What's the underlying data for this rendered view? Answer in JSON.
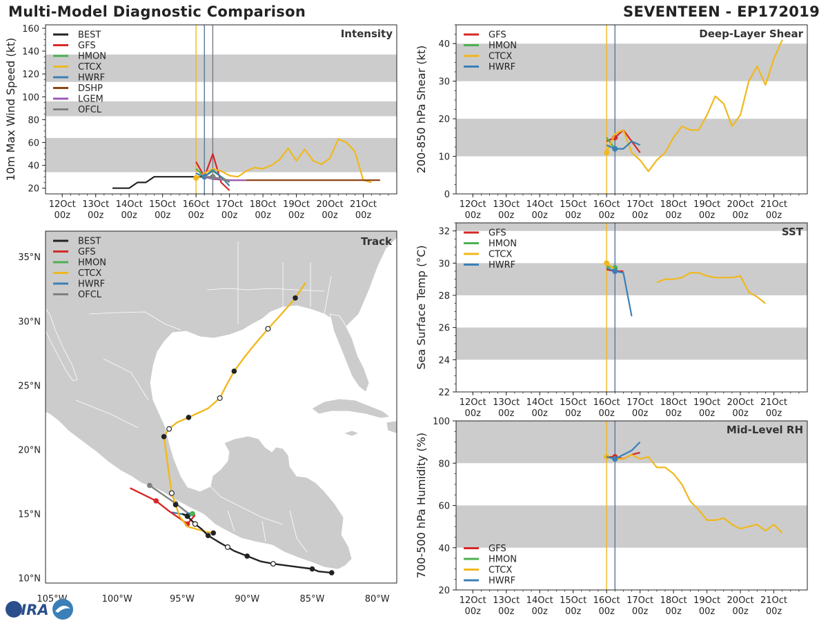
{
  "header": {
    "left_title": "Multi-Model Diagnostic Comparison",
    "right_title": "SEVENTEEN - EP172019"
  },
  "logo_text": "CIRA",
  "colors": {
    "BEST": "#222222",
    "GFS": "#d62728",
    "HMON": "#4caf50",
    "CTCX": "#f0b81c",
    "HWRF": "#3a7fb8",
    "DSHP": "#8b4513",
    "LGEM": "#9b59b6",
    "OFCL": "#808080",
    "band": "#cccccc",
    "land": "#cccccc",
    "vline_yellow": "#f0b81c",
    "vline_blue": "#557799",
    "vline_gray": "#777788"
  },
  "time_ticks": [
    {
      "line1": "12Oct",
      "line2": "00z"
    },
    {
      "line1": "13Oct",
      "line2": "00z"
    },
    {
      "line1": "14Oct",
      "line2": "00z"
    },
    {
      "line1": "15Oct",
      "line2": "00z"
    },
    {
      "line1": "16Oct",
      "line2": "00z"
    },
    {
      "line1": "17Oct",
      "line2": "00z"
    },
    {
      "line1": "18Oct",
      "line2": "00z"
    },
    {
      "line1": "19Oct",
      "line2": "00z"
    },
    {
      "line1": "20Oct",
      "line2": "00z"
    },
    {
      "line1": "21Oct",
      "line2": "00z"
    }
  ],
  "chart_data": [
    {
      "id": "intensity",
      "type": "line",
      "title": "Intensity",
      "ylabel": "10m Max Wind Speed (kt)",
      "xlabel": "",
      "xlim": [
        11.5,
        22.0
      ],
      "ylim": [
        15,
        163
      ],
      "yticks": [
        20,
        40,
        60,
        80,
        100,
        120,
        140,
        160
      ],
      "bands": [
        [
          34,
          64
        ],
        [
          83,
          96
        ],
        [
          113,
          137
        ]
      ],
      "vlines": [
        {
          "x": 16.0,
          "color": "vline_yellow"
        },
        {
          "x": 16.25,
          "color": "vline_blue"
        },
        {
          "x": 16.5,
          "color": "vline_gray"
        }
      ],
      "legend": [
        "BEST",
        "GFS",
        "HMON",
        "CTCX",
        "HWRF",
        "DSHP",
        "LGEM",
        "OFCL"
      ],
      "series": [
        {
          "name": "BEST",
          "x": [
            13.5,
            14.0,
            14.25,
            14.5,
            14.75,
            15.0,
            15.25,
            15.5,
            15.75,
            16.0,
            16.25
          ],
          "y": [
            20,
            20,
            25,
            25,
            30,
            30,
            30,
            30,
            30,
            30,
            30
          ],
          "markers": [
            16.25
          ]
        },
        {
          "name": "GFS",
          "x": [
            16.0,
            16.25,
            16.5,
            16.75,
            17.0
          ],
          "y": [
            43,
            30,
            50,
            25,
            18
          ],
          "markers": [
            16.25
          ]
        },
        {
          "name": "HMON",
          "x": [
            16.0,
            16.25,
            16.5,
            16.75,
            17.0
          ],
          "y": [
            37,
            30,
            35,
            30,
            25
          ],
          "markers": [
            16.25
          ]
        },
        {
          "name": "CTCX",
          "x": [
            16.0,
            16.25,
            16.5,
            16.75,
            17.0,
            17.25,
            17.5,
            17.75,
            18.0,
            18.25,
            18.5,
            18.75,
            19.0,
            19.25,
            19.5,
            19.75,
            20.0,
            20.25,
            20.5,
            20.75,
            21.0,
            21.25
          ],
          "y": [
            29,
            33,
            37,
            35,
            31,
            30,
            35,
            38,
            37,
            40,
            45,
            55,
            44,
            54,
            44,
            41,
            46,
            63,
            60,
            52,
            27,
            25
          ],
          "markers": [
            16.0
          ]
        },
        {
          "name": "HWRF",
          "x": [
            16.0,
            16.25,
            16.5,
            16.75,
            17.0
          ],
          "y": [
            33,
            30,
            36,
            30,
            22
          ],
          "markers": [
            16.25
          ]
        },
        {
          "name": "DSHP",
          "x": [
            16.25,
            16.5,
            17.0,
            17.5,
            18.0,
            19.0,
            20.0,
            21.0,
            21.5
          ],
          "y": [
            30,
            28,
            27,
            27,
            27,
            27,
            27,
            27,
            27
          ],
          "markers": []
        },
        {
          "name": "LGEM",
          "x": [
            16.25,
            16.5,
            17.0,
            17.5
          ],
          "y": [
            30,
            28,
            27,
            27
          ],
          "markers": []
        },
        {
          "name": "OFCL",
          "x": [
            16.25,
            16.5,
            16.75,
            17.0
          ],
          "y": [
            30,
            30,
            28,
            26
          ],
          "markers": [
            16.5
          ]
        }
      ]
    },
    {
      "id": "shear",
      "type": "line",
      "title": "Deep-Layer Shear",
      "ylabel": "200-850 hPa Shear (kt)",
      "xlabel": "",
      "xlim": [
        11.5,
        22.0
      ],
      "ylim": [
        0,
        45
      ],
      "yticks": [
        0,
        10,
        20,
        30,
        40
      ],
      "bands": [
        [
          10,
          20
        ],
        [
          30,
          40
        ]
      ],
      "vlines": [
        {
          "x": 16.0,
          "color": "vline_yellow"
        },
        {
          "x": 16.25,
          "color": "vline_blue"
        }
      ],
      "legend": [
        "GFS",
        "HMON",
        "CTCX",
        "HWRF"
      ],
      "series": [
        {
          "name": "GFS",
          "x": [
            16.0,
            16.25,
            16.5,
            16.75,
            17.0
          ],
          "y": [
            14,
            15,
            17,
            14,
            11
          ],
          "markers": [
            16.25
          ]
        },
        {
          "name": "HMON",
          "x": [
            16.0,
            16.25,
            16.5,
            16.75
          ],
          "y": [
            15,
            12,
            12,
            14
          ],
          "markers": [
            16.25
          ]
        },
        {
          "name": "CTCX",
          "x": [
            16.0,
            16.25,
            16.5,
            16.75,
            17.0,
            17.25,
            17.5,
            17.75,
            18.0,
            18.25,
            18.5,
            18.75,
            19.0,
            19.25,
            19.5,
            19.75,
            20.0,
            20.25,
            20.5,
            20.75,
            21.0,
            21.25
          ],
          "y": [
            11,
            16,
            17,
            11,
            9,
            6,
            9,
            11,
            15,
            18,
            17,
            17,
            21,
            26,
            24,
            18,
            21,
            30,
            34,
            29,
            36,
            41
          ],
          "markers": [
            16.0
          ]
        },
        {
          "name": "HWRF",
          "x": [
            16.0,
            16.25,
            16.5,
            16.75,
            17.0
          ],
          "y": [
            13,
            12,
            12,
            14,
            13
          ],
          "markers": [
            16.25
          ]
        }
      ]
    },
    {
      "id": "sst",
      "type": "line",
      "title": "SST",
      "ylabel": "Sea Surface Temp (°C)",
      "xlabel": "",
      "xlim": [
        11.5,
        22.0
      ],
      "ylim": [
        22,
        32.5
      ],
      "yticks": [
        22,
        24,
        26,
        28,
        30,
        32
      ],
      "bands": [
        [
          24,
          26
        ],
        [
          28,
          30
        ],
        [
          32,
          32.5
        ]
      ],
      "vlines": [
        {
          "x": 16.0,
          "color": "vline_yellow"
        },
        {
          "x": 16.25,
          "color": "vline_blue"
        }
      ],
      "legend": [
        "GFS",
        "HMON",
        "CTCX",
        "HWRF"
      ],
      "series": [
        {
          "name": "GFS",
          "x": [
            16.0,
            16.25,
            16.5
          ],
          "y": [
            29.6,
            29.5,
            29.5
          ],
          "markers": [
            16.25
          ]
        },
        {
          "name": "HMON",
          "x": [
            16.0,
            16.25
          ],
          "y": [
            29.8,
            29.7
          ],
          "markers": [
            16.25
          ]
        },
        {
          "name": "CTCX",
          "x": [
            16.0,
            16.25,
            17.5,
            17.75,
            18.0,
            18.25,
            18.5,
            18.75,
            19.0,
            19.25,
            19.5,
            19.75,
            20.0,
            20.25,
            20.5,
            20.75
          ],
          "y": [
            30.0,
            29.6,
            28.8,
            29.0,
            29.0,
            29.1,
            29.4,
            29.4,
            29.2,
            29.1,
            29.1,
            29.1,
            29.2,
            28.2,
            27.9,
            27.5
          ],
          "markers": [
            16.0
          ],
          "gap_after": 16.25
        },
        {
          "name": "HWRF",
          "x": [
            16.0,
            16.25,
            16.5,
            16.75
          ],
          "y": [
            29.7,
            29.5,
            29.4,
            26.7
          ],
          "markers": [
            16.25
          ]
        }
      ]
    },
    {
      "id": "rh",
      "type": "line",
      "title": "Mid-Level RH",
      "ylabel": "700-500 hPa Humidity (%)",
      "xlabel": "",
      "xlim": [
        11.5,
        22.0
      ],
      "ylim": [
        20,
        100
      ],
      "yticks": [
        20,
        40,
        60,
        80,
        100
      ],
      "bands": [
        [
          40,
          60
        ],
        [
          80,
          100
        ]
      ],
      "vlines": [
        {
          "x": 16.0,
          "color": "vline_yellow"
        },
        {
          "x": 16.25,
          "color": "vline_blue"
        }
      ],
      "legend": [
        "GFS",
        "HMON",
        "CTCX",
        "HWRF"
      ],
      "legend_position": "bottom-left",
      "series": [
        {
          "name": "GFS",
          "x": [
            16.0,
            16.25,
            16.5,
            16.75,
            17.0
          ],
          "y": [
            83,
            83,
            82,
            84,
            85
          ],
          "markers": [
            16.25
          ]
        },
        {
          "name": "HMON",
          "x": [
            16.0,
            16.25
          ],
          "y": [
            83,
            82
          ],
          "markers": [
            16.25
          ]
        },
        {
          "name": "CTCX",
          "x": [
            16.0,
            16.25,
            16.5,
            16.75,
            17.0,
            17.25,
            17.5,
            17.75,
            18.0,
            18.25,
            18.5,
            18.75,
            19.0,
            19.25,
            19.5,
            19.75,
            20.0,
            20.25,
            20.5,
            20.75,
            21.0,
            21.25
          ],
          "y": [
            83,
            82,
            82,
            84,
            82,
            83,
            78,
            78,
            75,
            70,
            62,
            58,
            53,
            53,
            54,
            51,
            49,
            50,
            51,
            48,
            51,
            47
          ],
          "markers": [
            16.0
          ]
        },
        {
          "name": "HWRF",
          "x": [
            16.0,
            16.25,
            16.5,
            16.75,
            17.0
          ],
          "y": [
            83,
            82,
            84,
            86,
            90
          ],
          "markers": [
            16.25
          ]
        }
      ]
    },
    {
      "id": "track",
      "type": "scatter",
      "title": "Track",
      "xlabel": "",
      "ylabel": "",
      "xlim": [
        -105.5,
        -78.5
      ],
      "ylim": [
        9.6,
        37.0
      ],
      "xticks": [
        {
          "v": -105,
          "label": "105°W"
        },
        {
          "v": -100,
          "label": "100°W"
        },
        {
          "v": -95,
          "label": "95°W"
        },
        {
          "v": -90,
          "label": "90°W"
        },
        {
          "v": -85,
          "label": "85°W"
        },
        {
          "v": -80,
          "label": "80°W"
        }
      ],
      "yticks": [
        {
          "v": 10,
          "label": "10°N"
        },
        {
          "v": 15,
          "label": "15°N"
        },
        {
          "v": 20,
          "label": "20°N"
        },
        {
          "v": 25,
          "label": "25°N"
        },
        {
          "v": 30,
          "label": "30°N"
        },
        {
          "v": 35,
          "label": "35°N"
        }
      ],
      "legend": [
        "BEST",
        "GFS",
        "HMON",
        "CTCX",
        "HWRF",
        "OFCL"
      ],
      "series": [
        {
          "name": "BEST",
          "lon": [
            -83.5,
            -84.5,
            -85.0,
            -86.5,
            -88.0,
            -89.0,
            -90.0,
            -91.0,
            -91.5,
            -92.2,
            -93.0,
            -93.5,
            -94.0,
            -94.3,
            -94.6,
            -95.0
          ],
          "lat": [
            10.4,
            10.5,
            10.7,
            10.9,
            11.1,
            11.3,
            11.7,
            12.1,
            12.4,
            12.8,
            13.3,
            13.8,
            14.2,
            14.5,
            14.8,
            15.0
          ],
          "filled": [
            0,
            2,
            6,
            10,
            14
          ],
          "open": [
            4,
            8,
            12
          ]
        },
        {
          "name": "GFS",
          "lon": [
            -94.0,
            -94.6,
            -95.0,
            -96.0,
            -97.0,
            -98.0,
            -99.0
          ],
          "lat": [
            14.9,
            14.2,
            14.5,
            15.2,
            16.0,
            16.5,
            17.0
          ],
          "filled": [
            1,
            4
          ],
          "open": []
        },
        {
          "name": "HMON",
          "lon": [
            -94.2,
            -94.5,
            -94.9
          ],
          "lat": [
            15.0,
            14.9,
            14.9
          ],
          "filled": [
            0
          ],
          "open": []
        },
        {
          "name": "CTCX",
          "lon": [
            -92.6,
            -93.2,
            -94.6,
            -95.2,
            -95.5,
            -95.8,
            -96.0,
            -96.4,
            -96.0,
            -95.4,
            -94.5,
            -93.0,
            -92.1,
            -91.6,
            -91.0,
            -90.2,
            -89.4,
            -88.4,
            -87.4,
            -86.3,
            -85.5
          ],
          "lat": [
            13.5,
            13.6,
            14.0,
            14.8,
            15.7,
            16.6,
            18.0,
            21.0,
            21.6,
            22.1,
            22.5,
            23.2,
            24.0,
            25.0,
            26.1,
            27.2,
            28.2,
            29.4,
            30.5,
            31.8,
            33.0
          ],
          "filled": [
            0,
            4,
            7,
            10,
            14,
            19
          ],
          "open": [
            5,
            8,
            12,
            17
          ]
        },
        {
          "name": "HWRF",
          "lon": [
            -94.5,
            -95.2,
            -95.8
          ],
          "lat": [
            14.9,
            15.0,
            15.1
          ],
          "filled": [
            0
          ],
          "open": []
        },
        {
          "name": "OFCL",
          "lon": [
            -94.5,
            -95.5,
            -96.5,
            -97.5
          ],
          "lat": [
            15.0,
            15.8,
            16.5,
            17.2
          ],
          "filled": [
            1,
            3
          ],
          "open": []
        }
      ]
    }
  ]
}
